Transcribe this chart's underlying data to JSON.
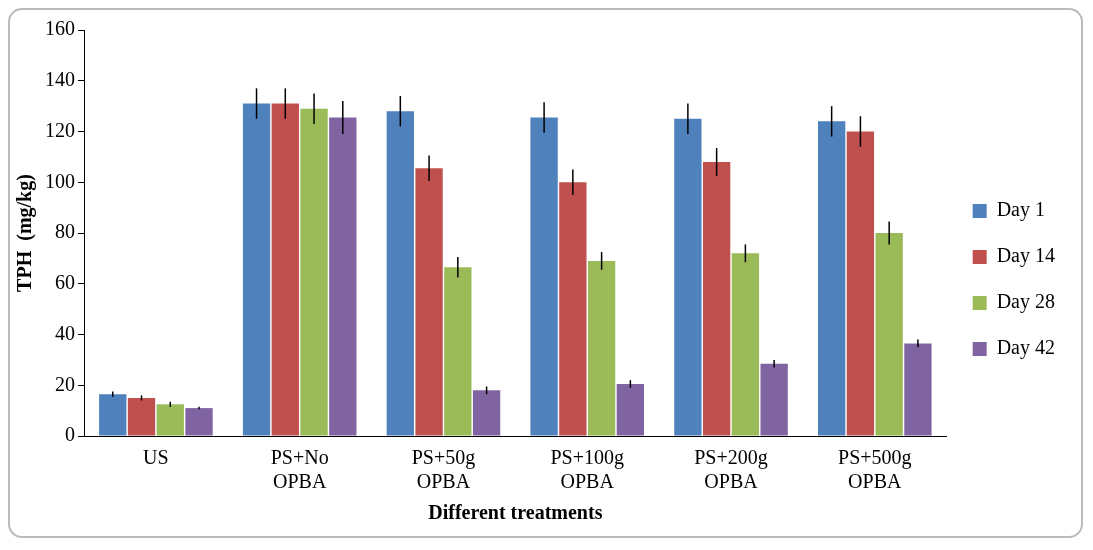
{
  "chart_data": {
    "type": "bar",
    "xlabel": "Different treatments",
    "ylabel": "TPH  (mg/kg)",
    "categories": [
      "US",
      "PS+No OPBA",
      "PS+50g OPBA",
      "PS+100g OPBA",
      "PS+200g OPBA",
      "PS+500g OPBA"
    ],
    "series": [
      {
        "name": "Day 1",
        "color": "#4f81bd",
        "values": [
          16.5,
          131,
          128,
          125.5,
          125,
          124
        ],
        "errors": [
          1,
          6,
          6,
          6,
          6,
          6
        ]
      },
      {
        "name": "Day 14",
        "color": "#c0504d",
        "values": [
          15,
          131,
          105.5,
          100,
          108,
          120
        ],
        "errors": [
          1,
          6,
          5,
          5,
          5.5,
          6
        ]
      },
      {
        "name": "Day 28",
        "color": "#9bbb59",
        "values": [
          12.5,
          129,
          66.5,
          69,
          72,
          80
        ],
        "errors": [
          1,
          6,
          4,
          3.5,
          3.5,
          4.5
        ]
      },
      {
        "name": "Day 42",
        "color": "#8064a2",
        "values": [
          11,
          125.5,
          18,
          20.5,
          28.5,
          36.5
        ],
        "errors": [
          0.5,
          6.5,
          1.5,
          1.5,
          1.5,
          1.5
        ]
      }
    ],
    "ylim": [
      0,
      160
    ],
    "yticks": [
      0,
      20,
      40,
      60,
      80,
      100,
      120,
      140,
      160
    ],
    "grid": false,
    "legend": "right"
  }
}
